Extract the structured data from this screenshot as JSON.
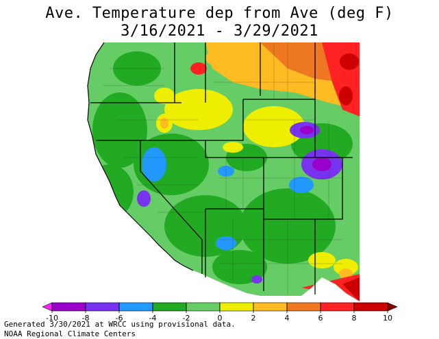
{
  "title": {
    "line1": "Ave. Temperature dep from Ave (deg F)",
    "line2": "3/16/2021 - 3/29/2021"
  },
  "legend": {
    "ticks": [
      "-10",
      "-8",
      "-6",
      "-4",
      "-2",
      "0",
      "2",
      "4",
      "6",
      "8",
      "10"
    ],
    "bins": [
      {
        "range": "< -10",
        "color": "#ff22ff"
      },
      {
        "range": "-10 to -8",
        "color": "#9900cc"
      },
      {
        "range": "-8 to -6",
        "color": "#7733ee"
      },
      {
        "range": "-6 to -4",
        "color": "#2299ff"
      },
      {
        "range": "-4 to -2",
        "color": "#22aa22"
      },
      {
        "range": "-2 to 0",
        "color": "#66cc66"
      },
      {
        "range": "0 to 2",
        "color": "#eeee00"
      },
      {
        "range": "2 to 4",
        "color": "#ffbb22"
      },
      {
        "range": "4 to 6",
        "color": "#ee7722"
      },
      {
        "range": "6 to 8",
        "color": "#ff2222"
      },
      {
        "range": "8 to 10",
        "color": "#cc0000"
      },
      {
        "range": "> 10",
        "color": "#880000"
      }
    ]
  },
  "footer": {
    "generated": "Generated 3/30/2021 at WRCC using provisional data.",
    "source": "NOAA Regional Climate Centers"
  }
}
